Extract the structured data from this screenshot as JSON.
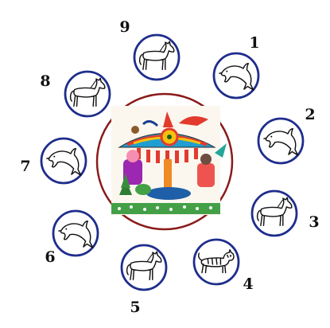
{
  "colors": {
    "ring_outer": "#1f2d8c",
    "center_ring": "#8b1a1a",
    "icon_stroke": "#111111"
  },
  "central_image": {
    "subject": "folk-art-carousel-painting",
    "icon": "carousel-illustration"
  },
  "positions": [
    {
      "number": "1",
      "animal": "dolphin",
      "icon": "dolphin-icon"
    },
    {
      "number": "2",
      "animal": "dolphin",
      "icon": "dolphin-icon"
    },
    {
      "number": "3",
      "animal": "horse",
      "icon": "horse-icon"
    },
    {
      "number": "4",
      "animal": "tiger",
      "icon": "tiger-icon"
    },
    {
      "number": "5",
      "animal": "horse",
      "icon": "horse-icon"
    },
    {
      "number": "6",
      "animal": "dolphin",
      "icon": "dolphin-icon"
    },
    {
      "number": "7",
      "animal": "dolphin",
      "icon": "dolphin-icon"
    },
    {
      "number": "8",
      "animal": "horse",
      "icon": "horse-icon"
    },
    {
      "number": "9",
      "animal": "horse",
      "icon": "horse-icon"
    }
  ]
}
